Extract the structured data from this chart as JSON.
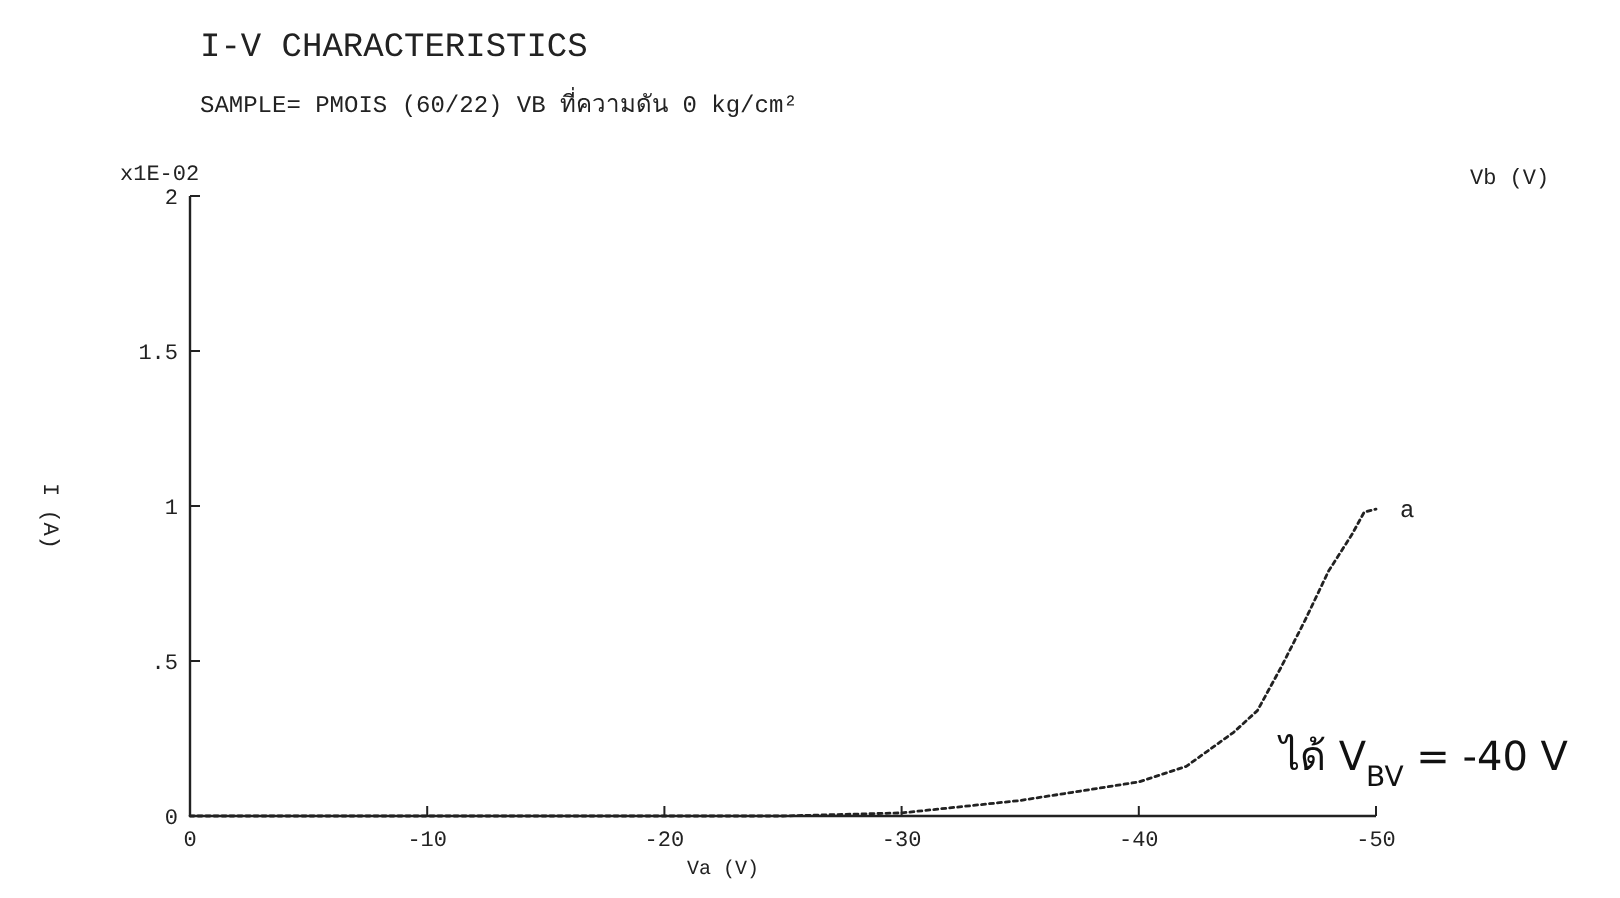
{
  "chart_data": {
    "type": "line",
    "title": "I-V CHARACTERISTICS",
    "subtitle": "SAMPLE= PMOIS (60/22) VB  ที่ความดัน 0 kg/cm²",
    "xlabel": "Va (V)",
    "ylabel": "I (A)",
    "annotations": [
      "x1E-02",
      "Vb (V)",
      {
        "text": "a",
        "x": -50,
        "y": 0.99
      },
      "ได้ V$_{BV}$ = -40 V"
    ],
    "x": [
      0,
      -10,
      -20,
      -25,
      -30,
      -35,
      -40,
      -42,
      -44,
      -45,
      -46,
      -47,
      -48,
      -49,
      -49.5,
      -50
    ],
    "series": [
      {
        "color": "#222222",
        "values": [
          0,
          0,
          0,
          0,
          0.01,
          0.05,
          0.11,
          0.16,
          0.27,
          0.34,
          0.48,
          0.63,
          0.79,
          0.91,
          0.98,
          0.99
        ]
      }
    ],
    "xlim": [
      0,
      -50
    ],
    "ylim": [
      0,
      2
    ],
    "xticks": [
      0,
      -10,
      -20,
      -30,
      -40,
      -50
    ],
    "yticks": [
      0,
      {
        "value": 0.5,
        "label": ".5"
      },
      1,
      {
        "value": 1.5,
        "label": "1.5"
      },
      2
    ],
    "grid": false,
    "line_style": "dotted",
    "marker": "none"
  }
}
